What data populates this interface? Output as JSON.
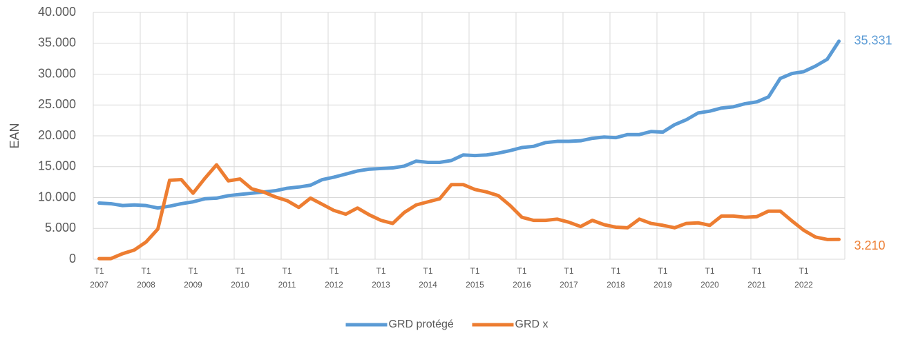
{
  "chart_data": {
    "type": "line",
    "ylabel": "EAN",
    "categories": [
      [
        "T1",
        "2007"
      ],
      null,
      null,
      null,
      [
        "T1",
        "2008"
      ],
      null,
      null,
      null,
      [
        "T1",
        "2009"
      ],
      null,
      null,
      null,
      [
        "T1",
        "2010"
      ],
      null,
      null,
      null,
      [
        "T1",
        "2011"
      ],
      null,
      null,
      null,
      [
        "T1",
        "2012"
      ],
      null,
      null,
      null,
      [
        "T1",
        "2013"
      ],
      null,
      null,
      null,
      [
        "T1",
        "2014"
      ],
      null,
      null,
      null,
      [
        "T1",
        "2015"
      ],
      null,
      null,
      null,
      [
        "T1",
        "2016"
      ],
      null,
      null,
      null,
      [
        "T1",
        "2017"
      ],
      null,
      null,
      null,
      [
        "T1",
        "2018"
      ],
      null,
      null,
      null,
      [
        "T1",
        "2019"
      ],
      null,
      null,
      null,
      [
        "T1",
        "2020"
      ],
      null,
      null,
      null,
      [
        "T1",
        "2021"
      ],
      null,
      null,
      null,
      [
        "T1",
        "2022"
      ],
      null,
      null,
      null
    ],
    "series": [
      {
        "name": "GRD protégé",
        "color": "#5b9bd5",
        "values": [
          9100,
          9000,
          8700,
          8800,
          8700,
          8300,
          8600,
          9000,
          9300,
          9800,
          9900,
          10300,
          10500,
          10700,
          10900,
          11100,
          11500,
          11700,
          12000,
          12900,
          13300,
          13800,
          14300,
          14600,
          14700,
          14800,
          15100,
          15900,
          15700,
          15700,
          16000,
          16900,
          16800,
          16900,
          17200,
          17600,
          18100,
          18300,
          18900,
          19100,
          19100,
          19200,
          19600,
          19800,
          19700,
          20200,
          20200,
          20700,
          20600,
          21800,
          22600,
          23700,
          24000,
          24500,
          24700,
          25200,
          25500,
          26300,
          29300,
          30100,
          30400,
          31300,
          32400,
          35331
        ],
        "value_labels": [
          null,
          null,
          null,
          null,
          null,
          null,
          null,
          null,
          null,
          null,
          null,
          null,
          null,
          null,
          null,
          null,
          null,
          null,
          null,
          null,
          null,
          null,
          null,
          null,
          null,
          null,
          null,
          null,
          null,
          null,
          null,
          null,
          null,
          null,
          null,
          null,
          null,
          null,
          null,
          null,
          null,
          null,
          null,
          null,
          null,
          null,
          null,
          null,
          null,
          null,
          null,
          null,
          null,
          null,
          null,
          null,
          null,
          null,
          null,
          null,
          null,
          null,
          null,
          "35.331"
        ]
      },
      {
        "name": "GRD x",
        "color": "#ed7d31",
        "values": [
          100,
          100,
          900,
          1500,
          2800,
          4900,
          12800,
          12900,
          10700,
          13100,
          15300,
          12700,
          13000,
          11400,
          10900,
          10100,
          9500,
          8400,
          9900,
          8900,
          7900,
          7300,
          8300,
          7200,
          6300,
          5800,
          7600,
          8800,
          9300,
          9800,
          12100,
          12100,
          11300,
          10900,
          10300,
          8700,
          6800,
          6300,
          6300,
          6500,
          6000,
          5300,
          6300,
          5600,
          5200,
          5100,
          6500,
          5800,
          5500,
          5100,
          5800,
          5900,
          5500,
          7000,
          7000,
          6800,
          6900,
          7800,
          7800,
          6200,
          4700,
          3600,
          3200,
          3210
        ],
        "value_labels": [
          null,
          null,
          null,
          null,
          null,
          null,
          null,
          null,
          null,
          null,
          null,
          null,
          null,
          null,
          null,
          null,
          null,
          null,
          null,
          null,
          null,
          null,
          null,
          null,
          null,
          null,
          null,
          null,
          null,
          null,
          null,
          null,
          null,
          null,
          null,
          null,
          null,
          null,
          null,
          null,
          null,
          null,
          null,
          null,
          null,
          null,
          null,
          null,
          null,
          null,
          null,
          null,
          null,
          null,
          null,
          null,
          null,
          null,
          null,
          null,
          null,
          null,
          null,
          "3.210"
        ]
      }
    ],
    "ylim": [
      0,
      40000
    ],
    "yticks": [
      0,
      {
        "value": 5000,
        "label": "5.000"
      },
      {
        "value": 10000,
        "label": "10.000"
      },
      {
        "value": 15000,
        "label": "15.000"
      },
      {
        "value": 20000,
        "label": "20.000"
      },
      {
        "value": 25000,
        "label": "25.000"
      },
      {
        "value": 30000,
        "label": "30.000"
      },
      {
        "value": 35000,
        "label": "35.000"
      },
      {
        "value": 40000,
        "label": "40.000"
      }
    ],
    "grid": true,
    "legend": "bottom"
  }
}
